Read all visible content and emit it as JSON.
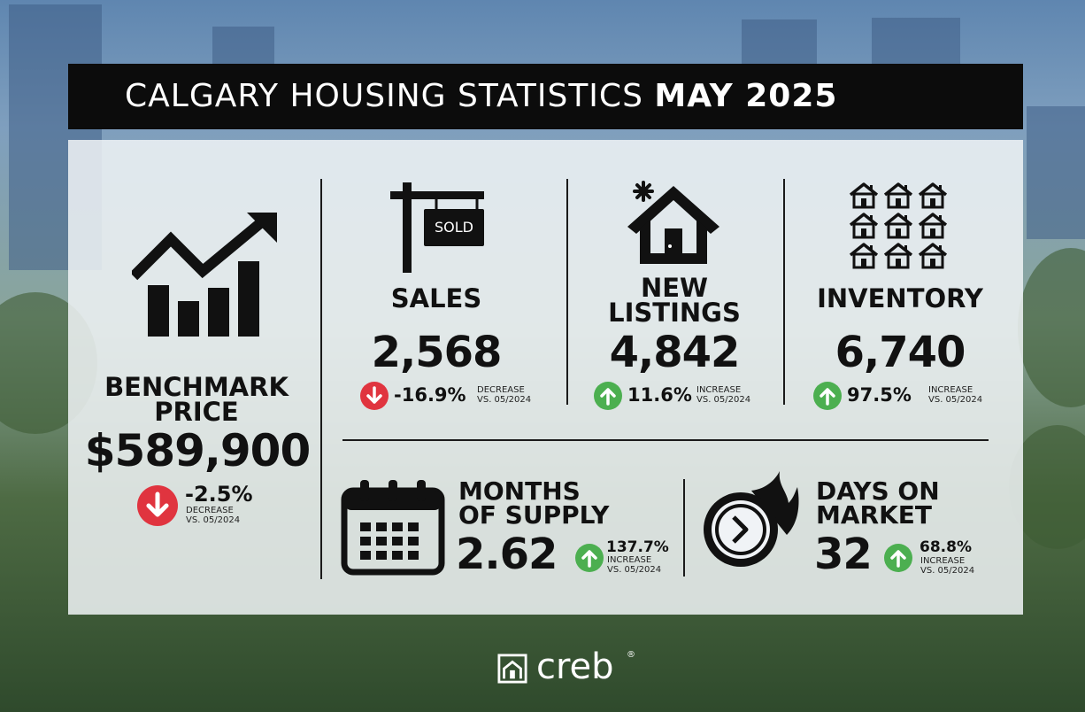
{
  "title": {
    "regular": "CALGARY HOUSING STATISTICS",
    "bold": "MAY 2025"
  },
  "colors": {
    "decrease": "#e0343f",
    "increase": "#4caf50",
    "title_bg": "#0c0c0c"
  },
  "benchmark": {
    "label_line1": "BENCHMARK",
    "label_line2": "PRICE",
    "value": "$589,900",
    "change": "-2.5%",
    "note_line1": "DECREASE",
    "note_line2": "VS. 05/2024",
    "icon": "rising-chart-icon"
  },
  "sales": {
    "sign_text": "SOLD",
    "label": "SALES",
    "value": "2,568",
    "change": "-16.9%",
    "note_line1": "DECREASE",
    "note_line2": "VS. 05/2024",
    "icon": "sold-sign-icon"
  },
  "new_listings": {
    "label_line1": "NEW",
    "label_line2": "LISTINGS",
    "value": "4,842",
    "change": "11.6%",
    "note_line1": "INCREASE",
    "note_line2": "VS. 05/2024",
    "icon": "new-house-icon"
  },
  "inventory": {
    "label": "INVENTORY",
    "value": "6,740",
    "change": "97.5%",
    "note_line1": "INCREASE",
    "note_line2": "VS. 05/2024",
    "icon": "houses-grid-icon"
  },
  "months_supply": {
    "label_line1": "MONTHS",
    "label_line2": "OF SUPPLY",
    "value": "2.62",
    "change": "137.7%",
    "note_line1": "INCREASE",
    "note_line2": "VS. 05/2024",
    "icon": "calendar-icon"
  },
  "days_on_market": {
    "label_line1": "DAYS ON",
    "label_line2": "MARKET",
    "value": "32",
    "change": "68.8%",
    "note_line1": "INCREASE",
    "note_line2": "VS. 05/2024",
    "icon": "fast-clock-icon"
  },
  "logo": {
    "text": "creb",
    "reg": "®"
  }
}
